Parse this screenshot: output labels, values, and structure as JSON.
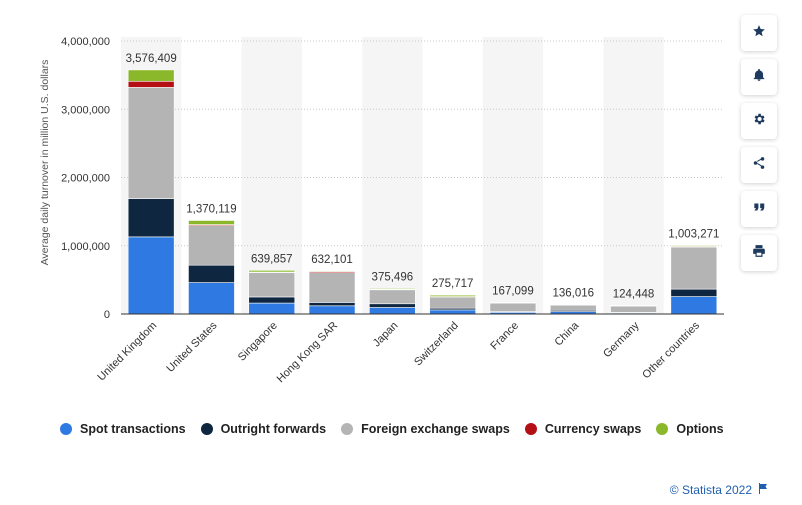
{
  "chart_data": {
    "type": "bar",
    "stacked": true,
    "ylabel": "Average daily turnover in million U.S. dollars",
    "ylim": [
      0,
      4000000
    ],
    "yticks": [
      "0",
      "1,000,000",
      "2,000,000",
      "3,000,000",
      "4,000,000"
    ],
    "ytick_values": [
      0,
      1000000,
      2000000,
      3000000,
      4000000
    ],
    "grid": true,
    "categories": [
      "United Kingdom",
      "United States",
      "Singapore",
      "Hong Kong SAR",
      "Japan",
      "Switzerland",
      "France",
      "China",
      "Germany",
      "Other countries"
    ],
    "totals": [
      3576409,
      1370119,
      639857,
      632101,
      375496,
      275717,
      167099,
      136016,
      124448,
      1003271
    ],
    "total_labels": [
      "3,576,409",
      "1,370,119",
      "639,857",
      "632,101",
      "375,496",
      "275,717",
      "167,099",
      "136,016",
      "124,448",
      "1,003,271"
    ],
    "series": [
      {
        "name": "Spot transactions",
        "color": "#2f79e2",
        "values": [
          1130000,
          460000,
          160000,
          120000,
          95000,
          60000,
          25000,
          35000,
          15000,
          255000
        ]
      },
      {
        "name": "Outright forwards",
        "color": "#0f2640",
        "values": [
          560000,
          255000,
          90000,
          50000,
          55000,
          25000,
          10000,
          20000,
          8000,
          110000
        ]
      },
      {
        "name": "Foreign exchange swaps",
        "color": "#b4b4b4",
        "values": [
          1630000,
          580000,
          355000,
          435000,
          205000,
          165000,
          130000,
          80000,
          98000,
          615000
        ]
      },
      {
        "name": "Currency swaps",
        "color": "#b30f14",
        "values": [
          90000,
          15000,
          10000,
          17101,
          8000,
          5000,
          1099,
          1016,
          2448,
          10000
        ]
      },
      {
        "name": "Options",
        "color": "#8ab82a",
        "values": [
          166409,
          60119,
          24857,
          10000,
          12496,
          20717,
          1000,
          0,
          1000,
          13271
        ]
      }
    ]
  },
  "toolbar": {
    "buttons": [
      {
        "name": "star-icon"
      },
      {
        "name": "bell-icon"
      },
      {
        "name": "gear-icon"
      },
      {
        "name": "share-icon"
      },
      {
        "name": "quote-icon"
      },
      {
        "name": "print-icon"
      }
    ]
  },
  "credit": {
    "text": "© Statista 2022",
    "icon": "flag-icon"
  }
}
